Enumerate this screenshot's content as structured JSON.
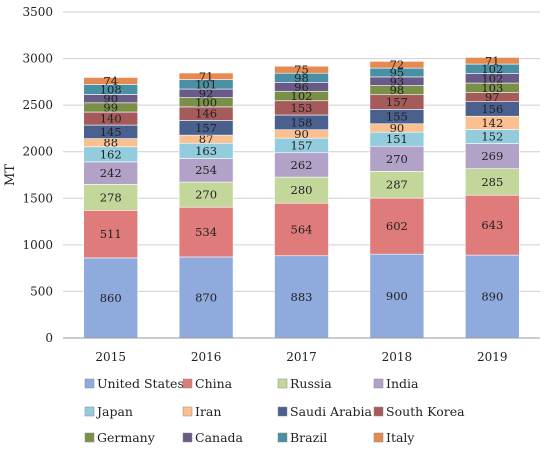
{
  "chart_data": {
    "type": "bar",
    "stacked": true,
    "title": "",
    "xlabel": "",
    "ylabel": "MT",
    "ylim": [
      0,
      3500
    ],
    "yticks": [
      0,
      500,
      1000,
      1500,
      2000,
      2500,
      3000,
      3500
    ],
    "grid": true,
    "legend_position": "bottom",
    "categories": [
      "2015",
      "2016",
      "2017",
      "2018",
      "2019"
    ],
    "series": [
      {
        "name": "United States",
        "color": "#8FAADC",
        "values": [
          860,
          870,
          883,
          900,
          890
        ]
      },
      {
        "name": "China",
        "color": "#E07B7B",
        "values": [
          511,
          534,
          564,
          602,
          643
        ]
      },
      {
        "name": "Russia",
        "color": "#C4D79B",
        "values": [
          278,
          270,
          280,
          287,
          285
        ]
      },
      {
        "name": "India",
        "color": "#B3A2C7",
        "values": [
          242,
          254,
          262,
          270,
          269
        ]
      },
      {
        "name": "Japan",
        "color": "#93CDDD",
        "values": [
          162,
          163,
          157,
          151,
          152
        ]
      },
      {
        "name": "Iran",
        "color": "#FAC090",
        "values": [
          88,
          87,
          90,
          90,
          142
        ]
      },
      {
        "name": "Saudi Arabia",
        "color": "#4A6190",
        "values": [
          145,
          157,
          158,
          155,
          156
        ]
      },
      {
        "name": "South Korea",
        "color": "#A65B5B",
        "values": [
          140,
          146,
          153,
          157,
          97
        ]
      },
      {
        "name": "Germany",
        "color": "#7A9048",
        "values": [
          99,
          100,
          102,
          98,
          103
        ]
      },
      {
        "name": "Canada",
        "color": "#6A5A88",
        "values": [
          90,
          92,
          96,
          93,
          102
        ]
      },
      {
        "name": "Brazil",
        "color": "#4A90A4",
        "values": [
          108,
          101,
          98,
          95,
          102
        ]
      },
      {
        "name": "Italy",
        "color": "#E58A50",
        "values": [
          74,
          71,
          75,
          72,
          71
        ]
      }
    ]
  }
}
